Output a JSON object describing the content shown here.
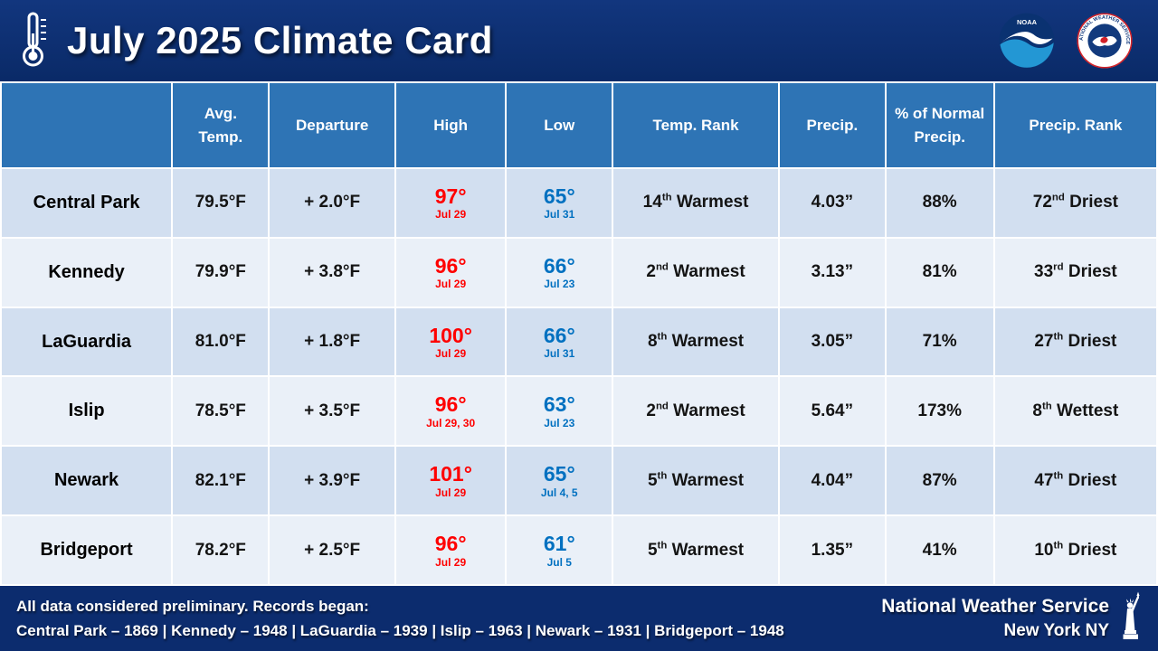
{
  "title": "July 2025 Climate Card",
  "logos": {
    "noaa_label": "NOAA",
    "nws_ring": "NATIONAL WEATHER SERVICE"
  },
  "colors": {
    "dark_blue": "#0c2c6e",
    "header_blue": "#2e74b5",
    "row_light": "#d2dff0",
    "row_lighter": "#eaf0f8",
    "high_red": "#ff0000",
    "low_blue": "#0070c0"
  },
  "table": {
    "columns": [
      "",
      "Avg. Temp.",
      "Departure",
      "High",
      "Low",
      "Temp. Rank",
      "Precip.",
      "% of Normal Precip.",
      "Precip. Rank"
    ],
    "rows": [
      {
        "station": "Central Park",
        "avg_temp": "79.5°F",
        "departure": "+ 2.0°F",
        "high": "97°",
        "high_date": "Jul 29",
        "low": "65°",
        "low_date": "Jul 31",
        "temp_rank": {
          "n": "14",
          "suf": "th",
          "label": "Warmest"
        },
        "precip": "4.03”",
        "pct_normal": "88%",
        "precip_rank": {
          "n": "72",
          "suf": "nd",
          "label": "Driest"
        }
      },
      {
        "station": "Kennedy",
        "avg_temp": "79.9°F",
        "departure": "+ 3.8°F",
        "high": "96°",
        "high_date": "Jul 29",
        "low": "66°",
        "low_date": "Jul 23",
        "temp_rank": {
          "n": "2",
          "suf": "nd",
          "label": "Warmest"
        },
        "precip": "3.13”",
        "pct_normal": "81%",
        "precip_rank": {
          "n": "33",
          "suf": "rd",
          "label": "Driest"
        }
      },
      {
        "station": "LaGuardia",
        "avg_temp": "81.0°F",
        "departure": "+ 1.8°F",
        "high": "100°",
        "high_date": "Jul 29",
        "low": "66°",
        "low_date": "Jul 31",
        "temp_rank": {
          "n": "8",
          "suf": "th",
          "label": "Warmest"
        },
        "precip": "3.05”",
        "pct_normal": "71%",
        "precip_rank": {
          "n": "27",
          "suf": "th",
          "label": "Driest"
        }
      },
      {
        "station": "Islip",
        "avg_temp": "78.5°F",
        "departure": "+ 3.5°F",
        "high": "96°",
        "high_date": "Jul 29, 30",
        "low": "63°",
        "low_date": "Jul 23",
        "temp_rank": {
          "n": "2",
          "suf": "nd",
          "label": "Warmest"
        },
        "precip": "5.64”",
        "pct_normal": "173%",
        "precip_rank": {
          "n": "8",
          "suf": "th",
          "label": "Wettest"
        }
      },
      {
        "station": "Newark",
        "avg_temp": "82.1°F",
        "departure": "+ 3.9°F",
        "high": "101°",
        "high_date": "Jul 29",
        "low": "65°",
        "low_date": "Jul 4, 5",
        "temp_rank": {
          "n": "5",
          "suf": "th",
          "label": "Warmest"
        },
        "precip": "4.04”",
        "pct_normal": "87%",
        "precip_rank": {
          "n": "47",
          "suf": "th",
          "label": "Driest"
        }
      },
      {
        "station": "Bridgeport",
        "avg_temp": "78.2°F",
        "departure": "+ 2.5°F",
        "high": "96°",
        "high_date": "Jul 29",
        "low": "61°",
        "low_date": "Jul 5",
        "temp_rank": {
          "n": "5",
          "suf": "th",
          "label": "Warmest"
        },
        "precip": "1.35”",
        "pct_normal": "41%",
        "precip_rank": {
          "n": "10",
          "suf": "th",
          "label": "Driest"
        }
      }
    ]
  },
  "footer": {
    "line1": "All data considered preliminary. Records began:",
    "line2": "Central Park – 1869 | Kennedy – 1948 | LaGuardia – 1939 | Islip – 1963 | Newark – 1931 | Bridgeport – 1948",
    "org_line1": "National Weather Service",
    "org_line2": "New York NY"
  }
}
